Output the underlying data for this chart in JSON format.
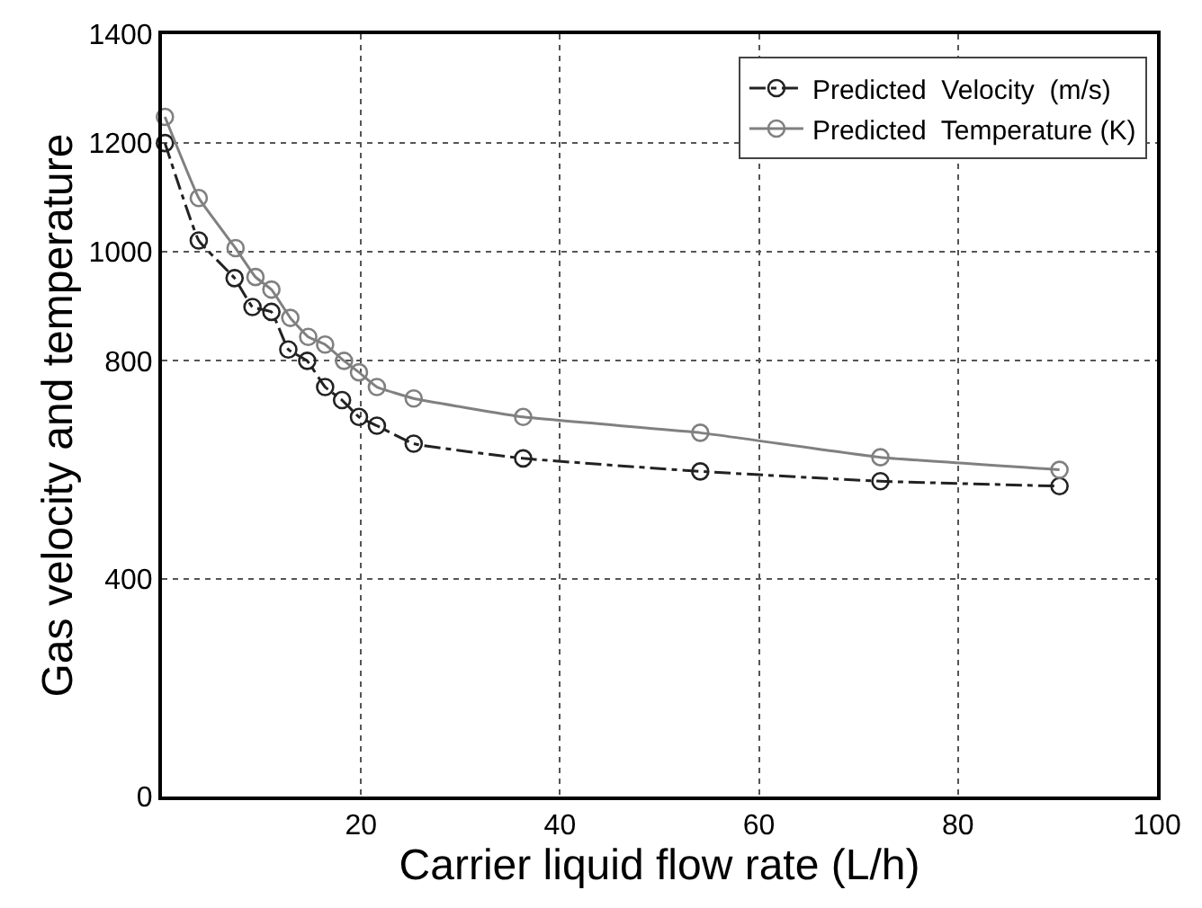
{
  "chart_data": {
    "type": "line",
    "xlabel": "Carrier liquid flow rate (L/h)",
    "ylabel": "Gas velocity and temperature",
    "xlim": [
      0,
      100
    ],
    "xticks": [
      20,
      40,
      60,
      80,
      100
    ],
    "ylim": [
      0,
      1400
    ],
    "yticks": [
      0,
      400,
      800,
      1000,
      1200,
      1400
    ],
    "grid": true,
    "legend": "top right",
    "marker": "circle",
    "series": [
      {
        "name": "Predicted  Velocity  (m/s)",
        "color": "#222222",
        "line_style": "dashdot",
        "x": [
          0.3,
          3.7,
          7.3,
          9.1,
          11,
          12.7,
          14.6,
          16.4,
          18.1,
          19.8,
          21.6,
          25.3,
          36.3,
          54.1,
          72.2,
          90.2
        ],
        "values": [
          1200,
          1021,
          952,
          899,
          890,
          821,
          800,
          752,
          728,
          697,
          681,
          648,
          621,
          597,
          579,
          570
        ]
      },
      {
        "name": "Predicted  Temperature (K)",
        "color": "#808080",
        "line_style": "solid",
        "x": [
          0.3,
          3.7,
          7.4,
          9.4,
          11,
          12.9,
          14.7,
          16.4,
          18.3,
          19.8,
          21.6,
          25.3,
          36.3,
          54.1,
          72.2,
          90.2
        ],
        "values": [
          1248,
          1099,
          1007,
          954,
          931,
          879,
          844,
          830,
          800,
          779,
          752,
          731,
          697,
          668,
          623,
          600
        ]
      }
    ]
  }
}
